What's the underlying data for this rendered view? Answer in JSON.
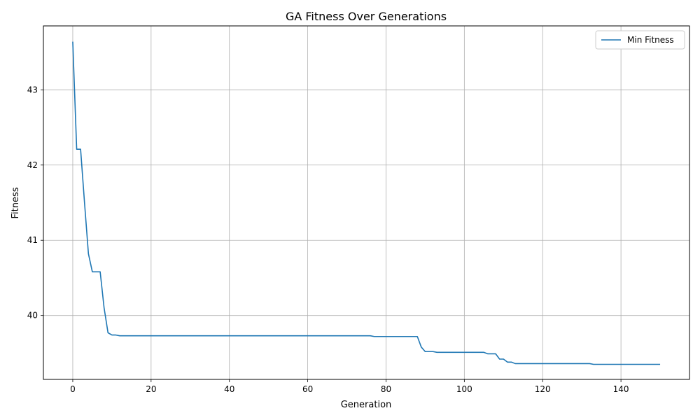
{
  "chart_data": {
    "type": "line",
    "title": "GA Fitness Over Generations",
    "xlabel": "Generation",
    "ylabel": "Fitness",
    "xlim": [
      -7.5,
      157.5
    ],
    "ylim": [
      39.15,
      43.85
    ],
    "xticks": [
      0,
      20,
      40,
      60,
      80,
      100,
      120,
      140
    ],
    "yticks": [
      40,
      41,
      42,
      43
    ],
    "grid": true,
    "legend_position": "top-right",
    "series": [
      {
        "name": "Min Fitness",
        "color": "#1f77b4",
        "points": [
          [
            0,
            43.64
          ],
          [
            1,
            42.21
          ],
          [
            2,
            42.21
          ],
          [
            3,
            41.5
          ],
          [
            4,
            40.82
          ],
          [
            5,
            40.58
          ],
          [
            6,
            40.58
          ],
          [
            7,
            40.58
          ],
          [
            8,
            40.1
          ],
          [
            9,
            39.77
          ],
          [
            10,
            39.74
          ],
          [
            11,
            39.74
          ],
          [
            12,
            39.73
          ],
          [
            76,
            39.73
          ],
          [
            77,
            39.72
          ],
          [
            88,
            39.72
          ],
          [
            89,
            39.58
          ],
          [
            90,
            39.52
          ],
          [
            92,
            39.52
          ],
          [
            93,
            39.51
          ],
          [
            105,
            39.51
          ],
          [
            106,
            39.49
          ],
          [
            108,
            39.49
          ],
          [
            109,
            39.42
          ],
          [
            110,
            39.42
          ],
          [
            111,
            39.38
          ],
          [
            112,
            39.38
          ],
          [
            113,
            39.36
          ],
          [
            132,
            39.36
          ],
          [
            133,
            39.35
          ],
          [
            150,
            39.35
          ]
        ]
      }
    ]
  }
}
